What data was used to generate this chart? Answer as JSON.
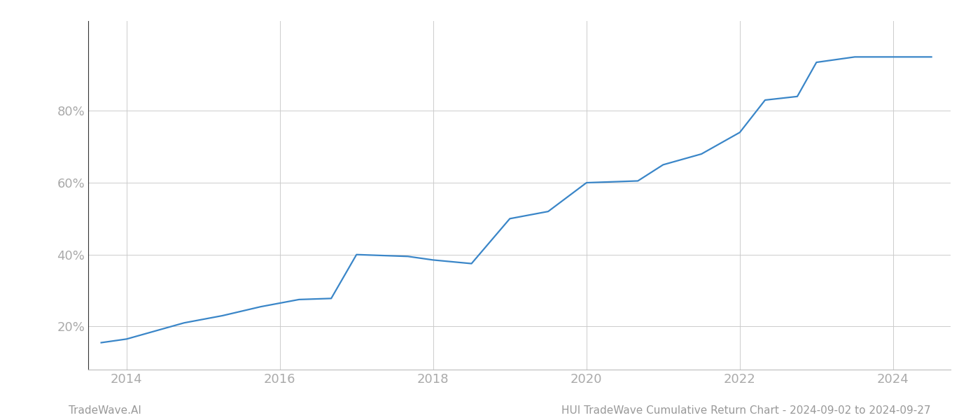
{
  "x_values": [
    2013.67,
    2014.0,
    2014.75,
    2015.25,
    2015.75,
    2016.25,
    2016.67,
    2017.0,
    2017.67,
    2018.0,
    2018.5,
    2019.0,
    2019.5,
    2020.0,
    2020.67,
    2021.0,
    2021.5,
    2022.0,
    2022.33,
    2022.75,
    2023.0,
    2023.5,
    2024.0,
    2024.5
  ],
  "y_values": [
    15.5,
    16.5,
    21.0,
    23.0,
    25.5,
    27.5,
    27.8,
    40.0,
    39.5,
    38.5,
    37.5,
    50.0,
    52.0,
    60.0,
    60.5,
    65.0,
    68.0,
    74.0,
    83.0,
    84.0,
    93.5,
    95.0,
    95.0,
    95.0
  ],
  "line_color": "#3a86c8",
  "line_width": 1.6,
  "xlim": [
    2013.5,
    2024.75
  ],
  "ylim": [
    8,
    105
  ],
  "yticks": [
    20,
    40,
    60,
    80
  ],
  "xticks": [
    2014,
    2016,
    2018,
    2020,
    2022,
    2024
  ],
  "grid_color": "#cccccc",
  "grid_alpha": 1.0,
  "grid_linewidth": 0.7,
  "background_color": "#ffffff",
  "tick_color": "#aaaaaa",
  "tick_fontsize": 13,
  "footer_left": "TradeWave.AI",
  "footer_right": "HUI TradeWave Cumulative Return Chart - 2024-09-02 to 2024-09-27",
  "footer_fontsize": 11,
  "footer_color": "#999999"
}
